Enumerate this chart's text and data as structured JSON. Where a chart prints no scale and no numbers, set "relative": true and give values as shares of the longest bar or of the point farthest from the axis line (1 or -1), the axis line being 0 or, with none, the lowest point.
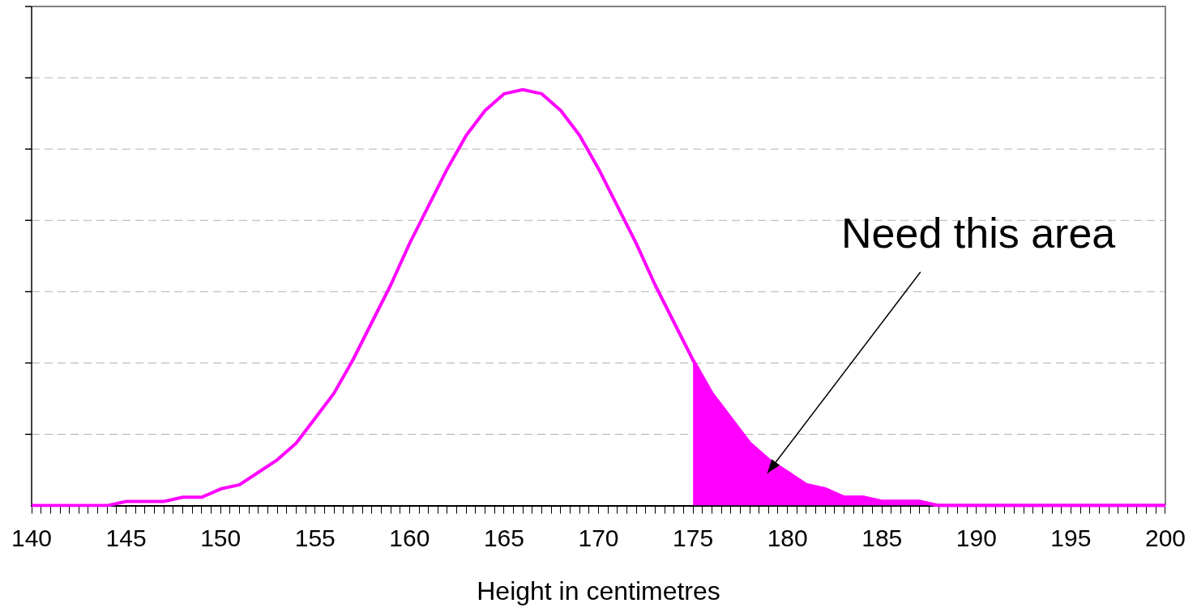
{
  "chart_data": {
    "type": "line",
    "relative": true,
    "xlabel": "Height in centimetres",
    "grid": "y",
    "marker": "none",
    "xlim": [
      140,
      200
    ],
    "x": [
      140,
      141,
      142,
      143,
      144,
      145,
      146,
      147,
      148,
      149,
      150,
      151,
      152,
      153,
      154,
      155,
      156,
      157,
      158,
      159,
      160,
      161,
      162,
      163,
      164,
      165,
      166,
      167,
      168,
      169,
      170,
      171,
      172,
      173,
      174,
      175,
      176,
      177,
      178,
      179,
      180,
      181,
      182,
      183,
      184,
      185,
      186,
      187,
      188,
      189,
      190,
      191,
      192,
      193,
      194,
      195,
      196,
      197,
      198,
      199,
      200
    ],
    "series": [
      {
        "color": "#ff00ff",
        "values": [
          0,
          0,
          0,
          0,
          0,
          0.01,
          0.01,
          0.01,
          0.02,
          0.02,
          0.04,
          0.05,
          0.08,
          0.11,
          0.15,
          0.21,
          0.27,
          0.35,
          0.44,
          0.53,
          0.63,
          0.72,
          0.81,
          0.89,
          0.95,
          0.99,
          1,
          0.99,
          0.95,
          0.89,
          0.81,
          0.72,
          0.63,
          0.53,
          0.44,
          0.35,
          0.27,
          0.21,
          0.15,
          0.11,
          0.08,
          0.05,
          0.04,
          0.02,
          0.02,
          0.01,
          0.01,
          0.01,
          0,
          0,
          0,
          0,
          0,
          0,
          0,
          0,
          0,
          0,
          0,
          0,
          0
        ]
      },
      {
        "type": "area",
        "color": "#ff00ff",
        "x": [
          175,
          176,
          177,
          178,
          179,
          180,
          181,
          182,
          183,
          184,
          185,
          186,
          187,
          188,
          189,
          190,
          191,
          192,
          193,
          194,
          195,
          196,
          197,
          198,
          199,
          200
        ],
        "values": [
          0.35,
          0.27,
          0.21,
          0.15,
          0.11,
          0.08,
          0.05,
          0.04,
          0.02,
          0.02,
          0.01,
          0.01,
          0.01,
          0,
          0,
          0,
          0,
          0,
          0,
          0,
          0,
          0,
          0,
          0,
          0,
          0
        ]
      }
    ],
    "annotations": [
      "Need this area"
    ],
    "xticks": [
      140,
      {
        "value": 140.5,
        "label": null
      },
      {
        "value": 141,
        "label": null
      },
      {
        "value": 141.5,
        "label": null
      },
      {
        "value": 142,
        "label": null
      },
      {
        "value": 142.5,
        "label": null
      },
      {
        "value": 143,
        "label": null
      },
      {
        "value": 143.5,
        "label": null
      },
      {
        "value": 144,
        "label": null
      },
      {
        "value": 144.5,
        "label": null
      },
      145,
      {
        "value": 145.5,
        "label": null
      },
      {
        "value": 146,
        "label": null
      },
      {
        "value": 146.5,
        "label": null
      },
      {
        "value": 147,
        "label": null
      },
      {
        "value": 147.5,
        "label": null
      },
      {
        "value": 148,
        "label": null
      },
      {
        "value": 148.5,
        "label": null
      },
      {
        "value": 149,
        "label": null
      },
      {
        "value": 149.5,
        "label": null
      },
      150,
      {
        "value": 150.5,
        "label": null
      },
      {
        "value": 151,
        "label": null
      },
      {
        "value": 151.5,
        "label": null
      },
      {
        "value": 152,
        "label": null
      },
      {
        "value": 152.5,
        "label": null
      },
      {
        "value": 153,
        "label": null
      },
      {
        "value": 153.5,
        "label": null
      },
      {
        "value": 154,
        "label": null
      },
      {
        "value": 154.5,
        "label": null
      },
      155,
      {
        "value": 155.5,
        "label": null
      },
      {
        "value": 156,
        "label": null
      },
      {
        "value": 156.5,
        "label": null
      },
      {
        "value": 157,
        "label": null
      },
      {
        "value": 157.5,
        "label": null
      },
      {
        "value": 158,
        "label": null
      },
      {
        "value": 158.5,
        "label": null
      },
      {
        "value": 159,
        "label": null
      },
      {
        "value": 159.5,
        "label": null
      },
      160,
      {
        "value": 160.5,
        "label": null
      },
      {
        "value": 161,
        "label": null
      },
      {
        "value": 161.5,
        "label": null
      },
      {
        "value": 162,
        "label": null
      },
      {
        "value": 162.5,
        "label": null
      },
      {
        "value": 163,
        "label": null
      },
      {
        "value": 163.5,
        "label": null
      },
      {
        "value": 164,
        "label": null
      },
      {
        "value": 164.5,
        "label": null
      },
      165,
      {
        "value": 165.5,
        "label": null
      },
      {
        "value": 166,
        "label": null
      },
      {
        "value": 166.5,
        "label": null
      },
      {
        "value": 167,
        "label": null
      },
      {
        "value": 167.5,
        "label": null
      },
      {
        "value": 168,
        "label": null
      },
      {
        "value": 168.5,
        "label": null
      },
      {
        "value": 169,
        "label": null
      },
      {
        "value": 169.5,
        "label": null
      },
      170,
      {
        "value": 170.5,
        "label": null
      },
      {
        "value": 171,
        "label": null
      },
      {
        "value": 171.5,
        "label": null
      },
      {
        "value": 172,
        "label": null
      },
      {
        "value": 172.5,
        "label": null
      },
      {
        "value": 173,
        "label": null
      },
      {
        "value": 173.5,
        "label": null
      },
      {
        "value": 174,
        "label": null
      },
      {
        "value": 174.5,
        "label": null
      },
      175,
      {
        "value": 175.5,
        "label": null
      },
      {
        "value": 176,
        "label": null
      },
      {
        "value": 176.5,
        "label": null
      },
      {
        "value": 177,
        "label": null
      },
      {
        "value": 177.5,
        "label": null
      },
      {
        "value": 178,
        "label": null
      },
      {
        "value": 178.5,
        "label": null
      },
      {
        "value": 179,
        "label": null
      },
      {
        "value": 179.5,
        "label": null
      },
      180,
      {
        "value": 180.5,
        "label": null
      },
      {
        "value": 181,
        "label": null
      },
      {
        "value": 181.5,
        "label": null
      },
      {
        "value": 182,
        "label": null
      },
      {
        "value": 182.5,
        "label": null
      },
      {
        "value": 183,
        "label": null
      },
      {
        "value": 183.5,
        "label": null
      },
      {
        "value": 184,
        "label": null
      },
      {
        "value": 184.5,
        "label": null
      },
      185,
      {
        "value": 185.5,
        "label": null
      },
      {
        "value": 186,
        "label": null
      },
      {
        "value": 186.5,
        "label": null
      },
      {
        "value": 187,
        "label": null
      },
      {
        "value": 187.5,
        "label": null
      },
      {
        "value": 188,
        "label": null
      },
      {
        "value": 188.5,
        "label": null
      },
      {
        "value": 189,
        "label": null
      },
      {
        "value": 189.5,
        "label": null
      },
      190,
      {
        "value": 190.5,
        "label": null
      },
      {
        "value": 191,
        "label": null
      },
      {
        "value": 191.5,
        "label": null
      },
      {
        "value": 192,
        "label": null
      },
      {
        "value": 192.5,
        "label": null
      },
      {
        "value": 193,
        "label": null
      },
      {
        "value": 193.5,
        "label": null
      },
      {
        "value": 194,
        "label": null
      },
      {
        "value": 194.5,
        "label": null
      },
      195,
      {
        "value": 195.5,
        "label": null
      },
      {
        "value": 196,
        "label": null
      },
      {
        "value": 196.5,
        "label": null
      },
      {
        "value": 197,
        "label": null
      },
      {
        "value": 197.5,
        "label": null
      },
      {
        "value": 198,
        "label": null
      },
      {
        "value": 198.5,
        "label": null
      },
      {
        "value": 199,
        "label": null
      },
      {
        "value": 199.5,
        "label": null
      },
      200
    ]
  }
}
